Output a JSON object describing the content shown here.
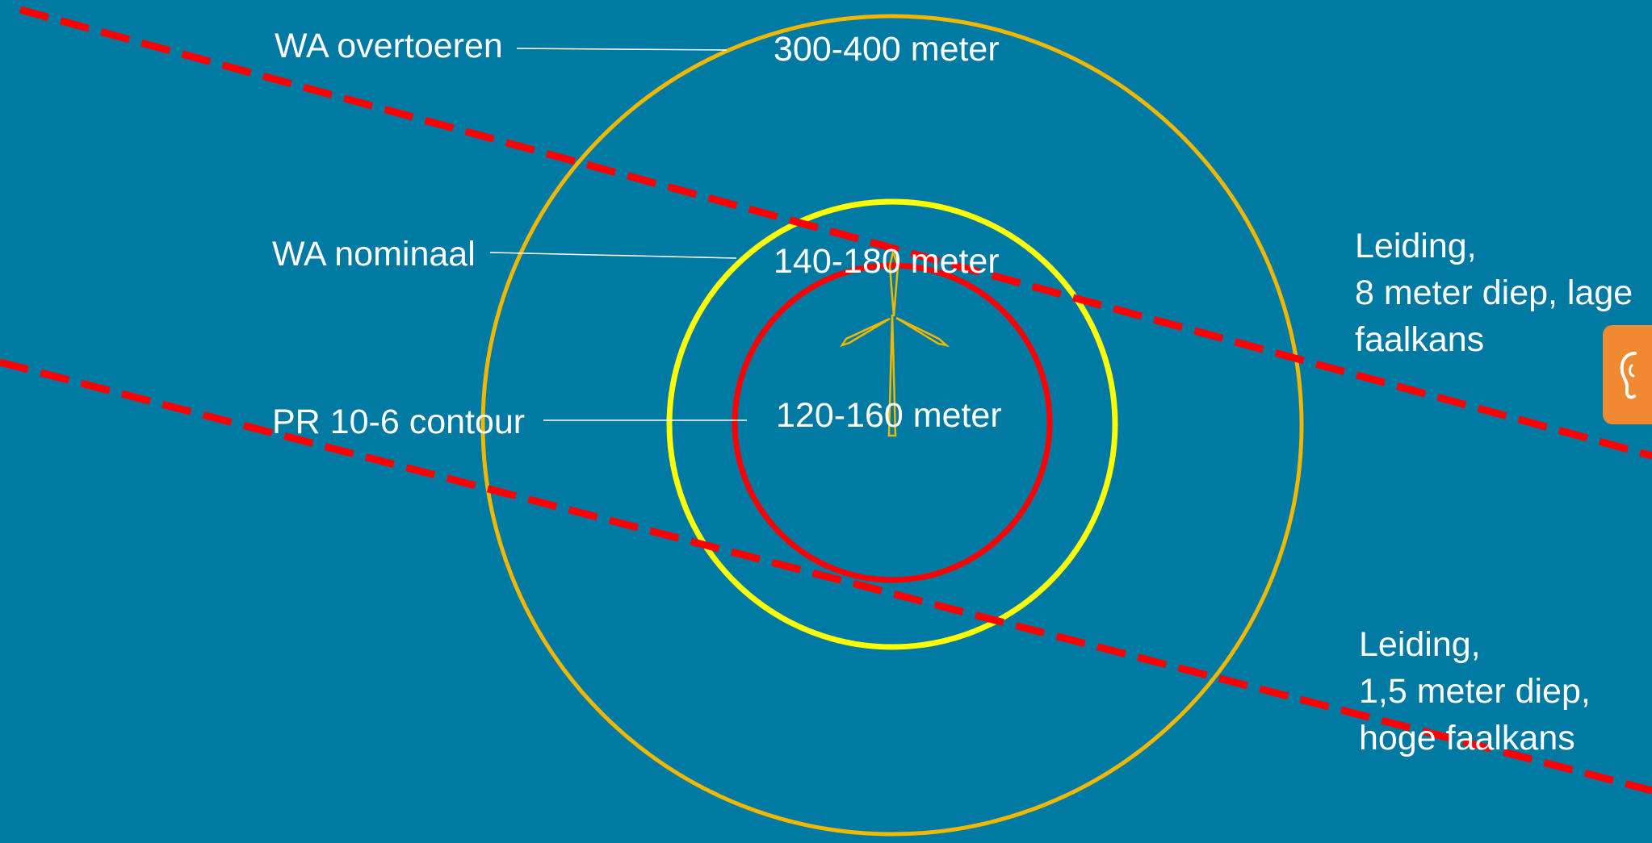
{
  "zones": {
    "overtoeren": {
      "name": "WA overtoeren",
      "distance": "300-400 meter",
      "color": "#f1b800"
    },
    "nominaal": {
      "name": "WA nominaal",
      "distance": "140-180 meter",
      "color": "#ffff00"
    },
    "pr_contour": {
      "name": "PR 10-6 contour",
      "distance": "120-160 meter",
      "color": "#ff0000"
    }
  },
  "pipelines": {
    "upper": {
      "lines": [
        "Leiding,",
        "8 meter diep, lage",
        "faalkans"
      ],
      "color": "#ff0000"
    },
    "lower": {
      "lines": [
        "Leiding,",
        "1,5 meter diep,",
        "hoge faalkans"
      ],
      "color": "#ff0000"
    }
  },
  "icons": {
    "turbine": "wind-turbine-icon",
    "side_tab": "ear-icon"
  },
  "colors": {
    "background": "#007aa3",
    "leader_line": "#ffffff",
    "side_tab": "#ef8a32"
  }
}
